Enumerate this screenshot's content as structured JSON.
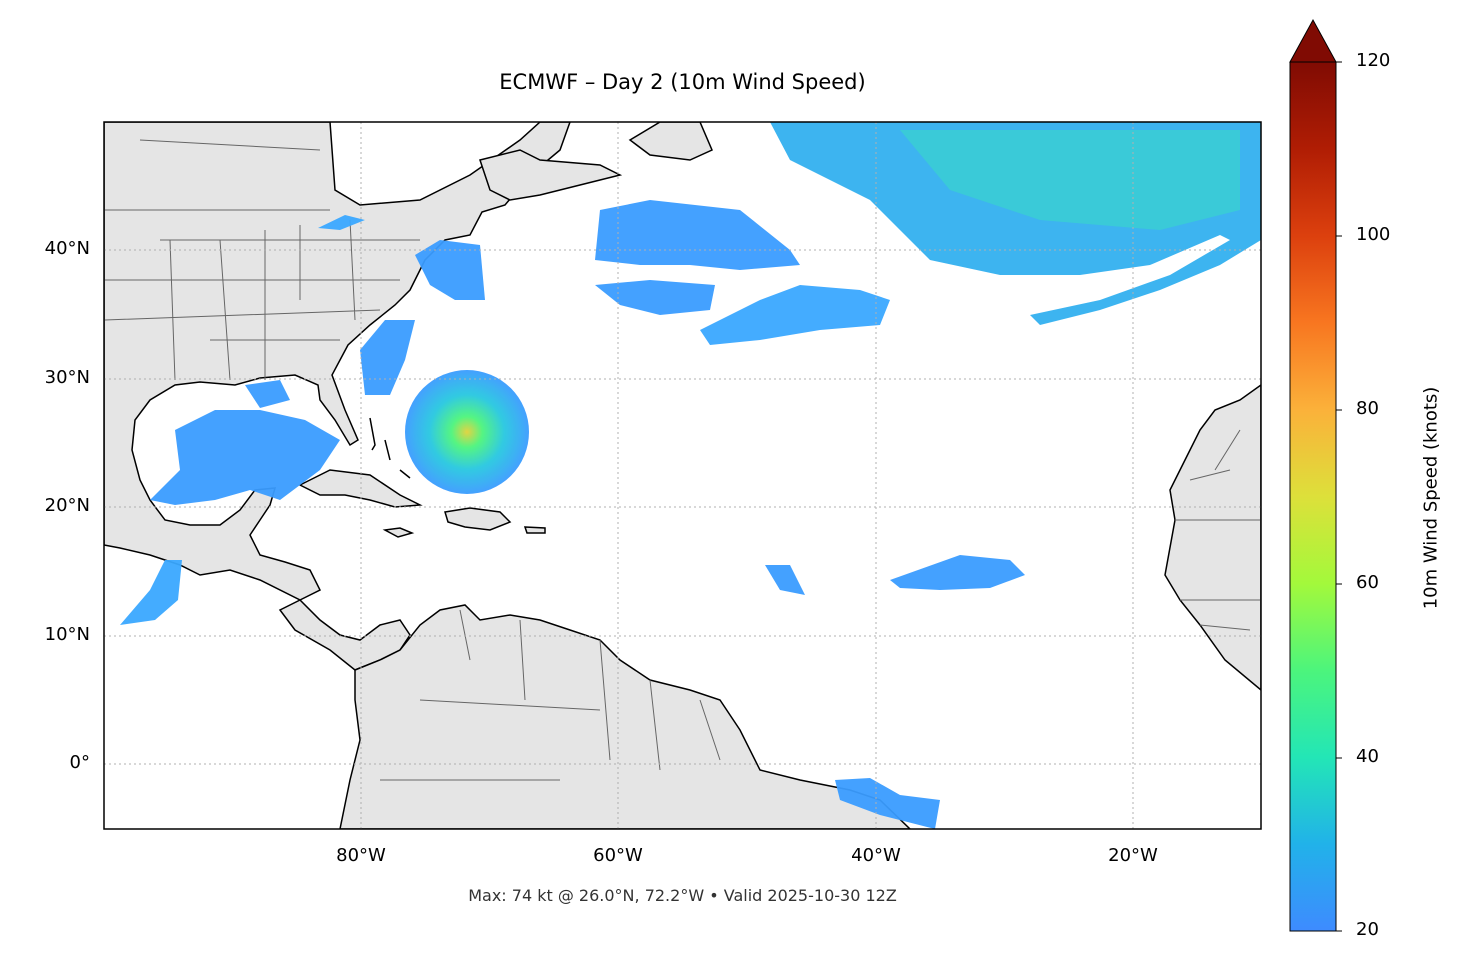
{
  "title": "ECMWF – Day 2 (10m Wind Speed)",
  "footer": "Max: 74 kt @ 26.0°N, 72.2°W • Valid 2025-10-30 12Z",
  "map": {
    "extent": {
      "lon": [
        -100,
        -10
      ],
      "lat": [
        -5,
        50
      ]
    },
    "lat_labels": [
      "40°N",
      "30°N",
      "20°N",
      "10°N",
      "0°"
    ],
    "lon_labels": [
      "80°W",
      "60°W",
      "40°W",
      "20°W"
    ],
    "gridlines": "dotted",
    "land_color": "#e5e5e5"
  },
  "colorbar": {
    "label": "10m Wind Speed (knots)",
    "ticks": [
      "20",
      "40",
      "60",
      "80",
      "100",
      "120"
    ],
    "range": [
      20,
      120
    ],
    "extend": "max",
    "colormap": "turbo"
  }
}
